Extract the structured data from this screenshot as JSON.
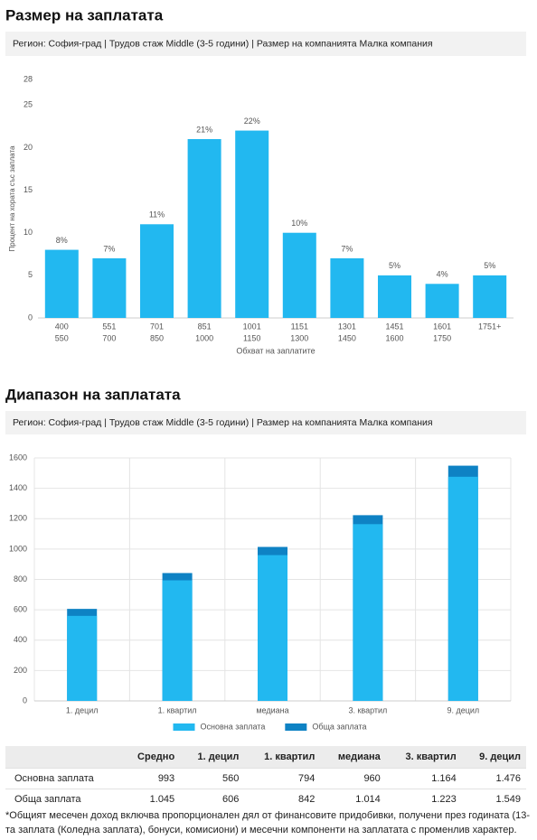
{
  "chart_data": [
    {
      "type": "bar",
      "title": "Размер на заплатата",
      "subtitle": "Регион: София-град | Трудов стаж Middle (3-5 години) | Размер на компанията Малка компания",
      "y_label": "Процент на хората със заплата",
      "x_label": "Обхват на заплатите",
      "categories": [
        [
          "400",
          "550"
        ],
        [
          "551",
          "700"
        ],
        [
          "701",
          "850"
        ],
        [
          "851",
          "1000"
        ],
        [
          "1001",
          "1150"
        ],
        [
          "1151",
          "1300"
        ],
        [
          "1301",
          "1450"
        ],
        [
          "1451",
          "1600"
        ],
        [
          "1601",
          "1750"
        ],
        [
          "1751+"
        ]
      ],
      "values": [
        8,
        7,
        11,
        21,
        22,
        10,
        7,
        5,
        4,
        5
      ],
      "value_labels": [
        "8%",
        "7%",
        "11%",
        "21%",
        "22%",
        "10%",
        "7%",
        "5%",
        "4%",
        "5%"
      ],
      "color": "#22b8f0",
      "ylim": [
        0,
        28
      ],
      "yticks": [
        0,
        5,
        10,
        15,
        20,
        25,
        28
      ],
      "grid": false
    },
    {
      "type": "bar",
      "title": "Диапазон на заплатата",
      "subtitle": "Регион: София-град | Трудов стаж Middle (3-5 години) | Размер на компанията Малка компания",
      "categories": [
        "1. децил",
        "1. квартил",
        "медиана",
        "3. квартил",
        "9. децил"
      ],
      "series": [
        {
          "name": "Основна заплата",
          "color": "#22b8f0",
          "values": [
            560,
            794,
            960,
            1164,
            1476
          ]
        },
        {
          "name": "Обща заплата",
          "color": "#0e82c4",
          "values": [
            606,
            842,
            1014,
            1223,
            1549
          ]
        }
      ],
      "barmode": "overlay",
      "ylim": [
        0,
        1600
      ],
      "yticks": [
        0,
        200,
        400,
        600,
        800,
        1000,
        1200,
        1400,
        1600
      ],
      "grid": true,
      "legend": "bottom"
    }
  ],
  "table": {
    "columns": [
      "Средно",
      "1. децил",
      "1. квартил",
      "медиана",
      "3. квартил",
      "9. децил"
    ],
    "rows": [
      [
        "Основна заплата",
        "993",
        "560",
        "794",
        "960",
        "1.164",
        "1.476"
      ],
      [
        "Обща заплата",
        "1.045",
        "606",
        "842",
        "1.014",
        "1.223",
        "1.549"
      ]
    ]
  },
  "footnote": "*Общият месечен доход включва пропорционален дял от финансовите придобивки, получени през годината (13-та заплата (Коледна заплата), бонуси, комисиони) и месечни компоненти на заплатата с променлив характер."
}
